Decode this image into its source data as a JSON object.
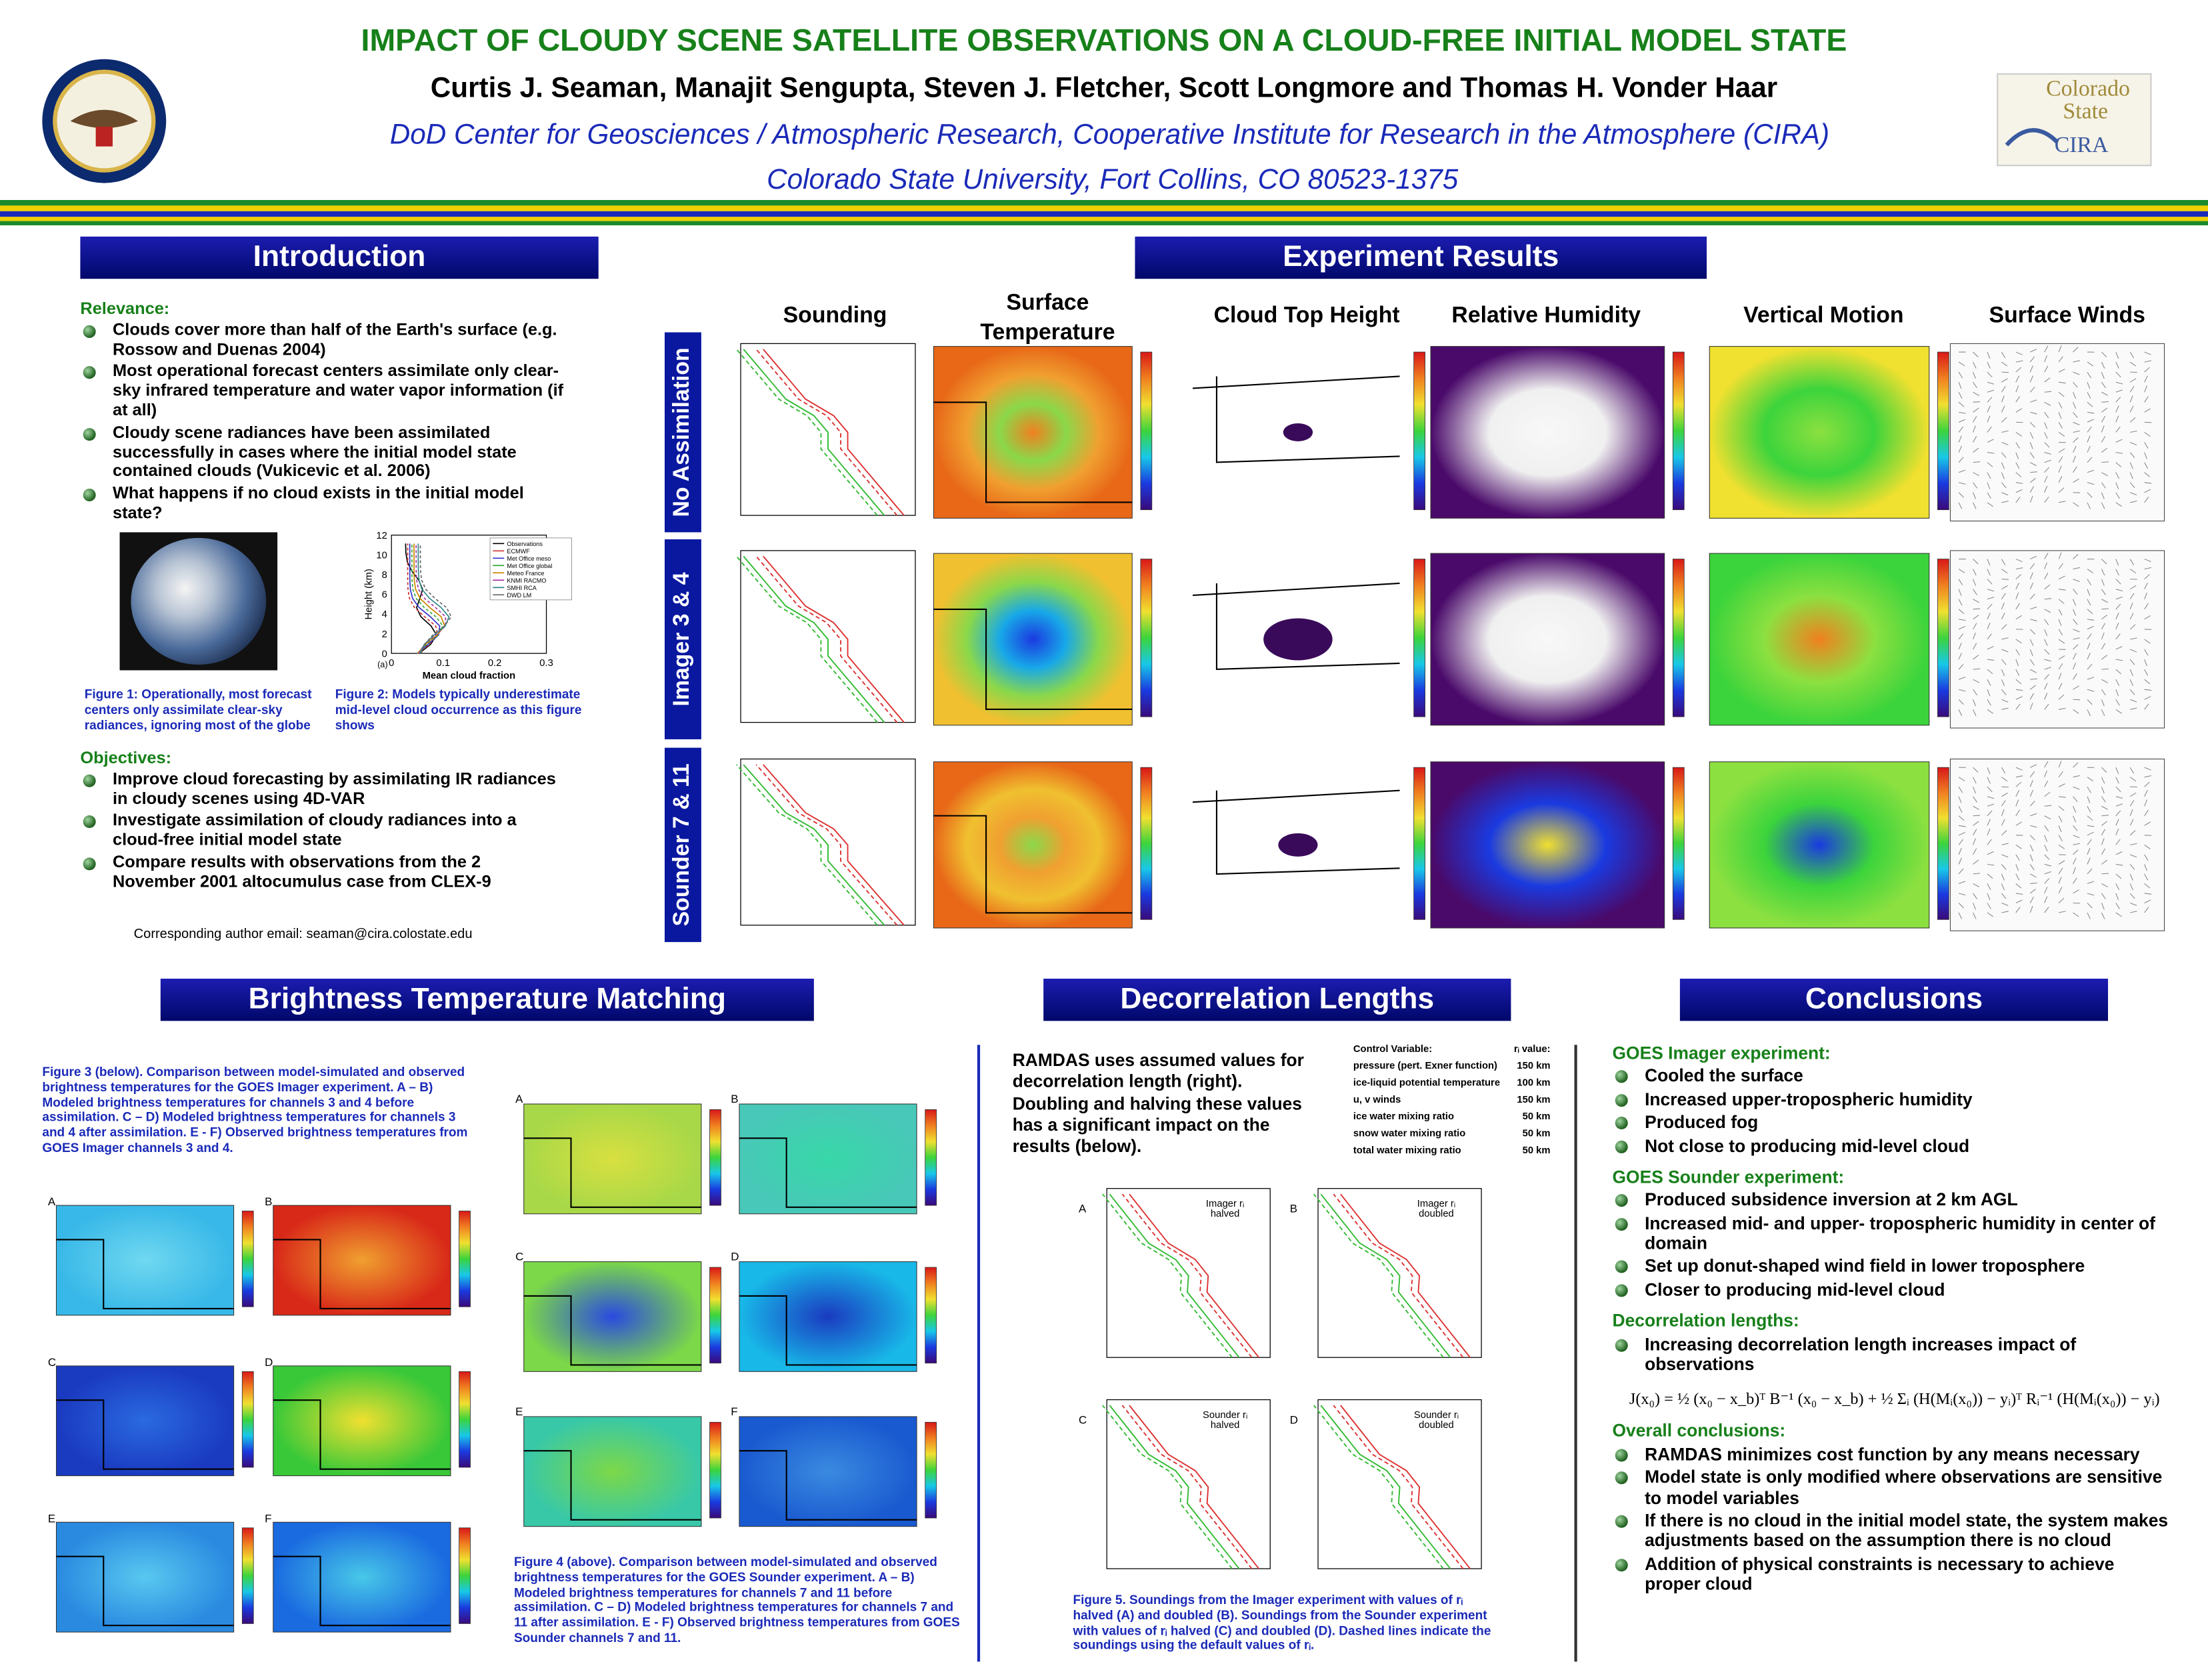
{
  "header": {
    "title": "IMPACT OF CLOUDY SCENE SATELLITE OBSERVATIONS ON A CLOUD-FREE INITIAL MODEL STATE",
    "authors": "Curtis J. Seaman, Manajit Sengupta, Steven J. Fletcher, Scott Longmore and Thomas H. Vonder Haar",
    "affiliation": [
      "DoD Center for Geosciences / Atmospheric Research, Cooperative Institute for Research in the Atmosphere (CIRA)",
      "Colorado State University, Fort Collins, CO 80523-1375"
    ],
    "logo_text": [
      "Colorado",
      "State",
      "CIRA"
    ]
  },
  "introduction": {
    "heading": "Introduction",
    "relevance_label": "Relevance:",
    "relevance_items": [
      "Clouds cover more than half of the Earth's surface (e.g. Rossow and Duenas 2004)",
      "Most operational forecast centers assimilate only clear-sky infrared temperature and water vapor information (if at all)",
      "Cloudy scene radiances have been assimilated successfully in cases where the initial model state contained clouds (Vukicevic et al. 2006)",
      "What happens if no cloud exists in the initial model state?"
    ],
    "figure2": {
      "panel": "(a)",
      "y_label": "Height (km)",
      "x_label": "Mean cloud fraction",
      "yticks": [
        0,
        2,
        4,
        6,
        8,
        10,
        12
      ],
      "xticks": [
        0,
        0.1,
        0.2,
        0.3
      ],
      "legend": [
        "Observations",
        "ECMWF",
        "Met Office meso",
        "Met Office global",
        "Meteo France",
        "KNMI RACMO",
        "SMHI RCA",
        "DWD LM"
      ]
    },
    "figure1_caption": "Figure 1: Operationally, most forecast centers only assimilate clear-sky radiances, ignoring most of the globe",
    "figure2_caption": "Figure 2: Models typically underestimate mid-level cloud occurrence as this figure shows",
    "objectives_label": "Objectives:",
    "objectives_items": [
      "Improve cloud forecasting by assimilating IR radiances in cloudy scenes using 4D-VAR",
      "Investigate assimilation of cloudy radiances into a cloud-free initial model state",
      "Compare results with observations from the 2 November 2001 altocumulus case from CLEX-9"
    ],
    "email": "Corresponding author email: seaman@cira.colostate.edu"
  },
  "experiment": {
    "heading": "Experiment Results",
    "columns": [
      "Sounding",
      "Surface Temperature",
      "Cloud Top Height",
      "Relative Humidity",
      "Vertical Motion",
      "Surface Winds"
    ],
    "rows": [
      "No Assimilation",
      "Imager 3 & 4",
      "Sounder 7 & 11"
    ]
  },
  "brightness": {
    "heading": "Brightness Temperature Matching",
    "figure3_caption": "Figure 3 (below). Comparison between model-simulated and observed brightness temperatures for the GOES Imager experiment. A – B) Modeled brightness temperatures for channels 3 and 4 before assimilation. C – D) Modeled brightness temperatures for channels 3 and 4 after assimilation. E - F) Observed brightness temperatures from GOES Imager channels 3 and 4.",
    "figure4_caption": "Figure 4 (above). Comparison between model-simulated and observed brightness temperatures for the GOES Sounder experiment. A – B) Modeled brightness temperatures for channels 7 and 11 before assimilation. C – D) Modeled brightness temperatures for channels 7 and 11 after assimilation. E - F) Observed brightness temperatures from GOES Sounder channels 7 and 11.",
    "panels": [
      "A",
      "B",
      "C",
      "D",
      "E",
      "F"
    ]
  },
  "decorrelation": {
    "heading": "Decorrelation Lengths",
    "text": "RAMDAS uses assumed values for decorrelation length (right). Doubling and halving these values has a significant impact on the results (below).",
    "table_header": [
      "Control Variable:",
      "rᵢ value:"
    ],
    "table_rows": [
      [
        "pressure (pert. Exner function)",
        "150 km"
      ],
      [
        "ice-liquid potential temperature",
        "100 km"
      ],
      [
        "u, v winds",
        "150 km"
      ],
      [
        "ice water mixing ratio",
        "50 km"
      ],
      [
        "snow water mixing ratio",
        "50 km"
      ],
      [
        "total water mixing ratio",
        "50 km"
      ]
    ],
    "panel_notes": [
      "Imager rᵢ halved",
      "Imager rᵢ doubled",
      "Sounder rᵢ halved",
      "Sounder rᵢ doubled"
    ],
    "figure5_caption": "Figure 5. Soundings from the Imager experiment with values of rᵢ halved (A) and doubled (B). Soundings from the Sounder experiment with values of rᵢ halved (C) and doubled (D). Dashed lines indicate the soundings using the default values of rᵢ."
  },
  "conclusions": {
    "heading": "Conclusions",
    "sections": [
      {
        "label": "GOES Imager experiment:",
        "items": [
          "Cooled the surface",
          "Increased upper-tropospheric humidity",
          "Produced fog",
          "Not close to producing mid-level cloud"
        ]
      },
      {
        "label": "GOES Sounder experiment:",
        "items": [
          "Produced subsidence inversion at 2 km AGL",
          "Increased mid- and upper- tropospheric humidity in center of domain",
          "Set up donut-shaped wind field in lower troposphere",
          "Closer to producing mid-level cloud"
        ]
      },
      {
        "label": "Decorrelation lengths:",
        "items": [
          "Increasing decorrelation length increases impact of observations"
        ]
      },
      {
        "label": "Overall conclusions:",
        "items": [
          "RAMDAS minimizes cost function by any means necessary",
          "Model state is only modified where observations are sensitive to model variables",
          "If there is no cloud in the initial model state, the system makes adjustments based on the assumption there is no cloud",
          "Addition of physical constraints is necessary to achieve proper cloud"
        ]
      }
    ],
    "equation": "J(x₀) = ½ (x₀ − x_b)ᵀ B⁻¹ (x₀ − x_b) + ½ Σᵢ (H(Mᵢ(x₀)) − yᵢ)ᵀ Rᵢ⁻¹ (H(Mᵢ(x₀)) − yᵢ)"
  }
}
